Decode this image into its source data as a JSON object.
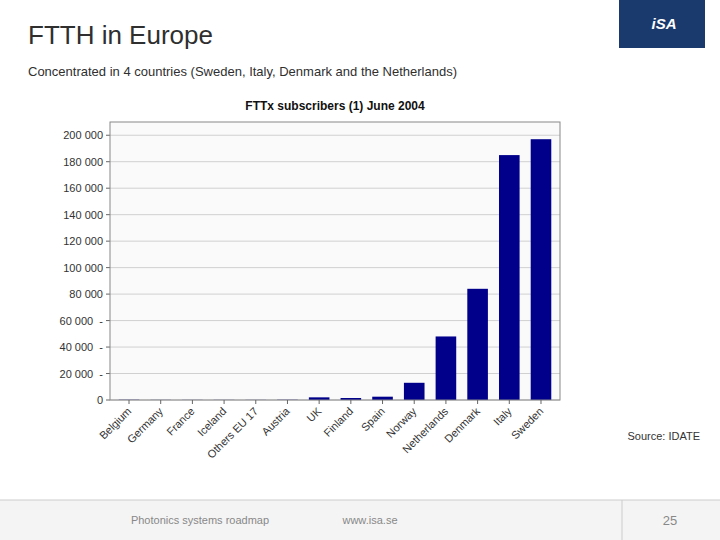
{
  "chart_data": {
    "type": "bar",
    "title": "FTTH in Europe",
    "subtitle": "Concentrated in 4 countries (Sweden, Italy, Denmark and the Netherlands)",
    "annotations": [
      "FTTx subscribers (1) June 2004",
      "Source: IDATE",
      "Photonics systems roadmap",
      "www.isa.se",
      "25",
      "iSA"
    ],
    "categories": [
      "Belgium",
      "Germany",
      "France",
      "Iceland",
      "Others EU 17",
      "Austria",
      "UK",
      "Finland",
      "Spain",
      "Norway",
      "Netherlands",
      "Denmark",
      "Italy",
      "Sweden"
    ],
    "values": [
      200,
      100,
      100,
      100,
      100,
      200,
      2000,
      1500,
      2500,
      13000,
      48000,
      84000,
      185000,
      197000
    ],
    "color": "#00008B",
    "ylim": [
      0,
      210000
    ],
    "yticks": [
      0,
      {
        "value": 20000,
        "label": "20 000  -"
      },
      {
        "value": 40000,
        "label": "40 000  -"
      },
      {
        "value": 60000,
        "label": "60 000  -"
      },
      {
        "value": 80000,
        "label": "80 000"
      },
      {
        "value": 100000,
        "label": "100 000"
      },
      {
        "value": 120000,
        "label": "120 000"
      },
      {
        "value": 140000,
        "label": "140 000"
      },
      {
        "value": 160000,
        "label": "160 000"
      },
      {
        "value": 180000,
        "label": "180 000"
      },
      {
        "value": 200000,
        "label": "200 000"
      }
    ],
    "grid": true
  }
}
